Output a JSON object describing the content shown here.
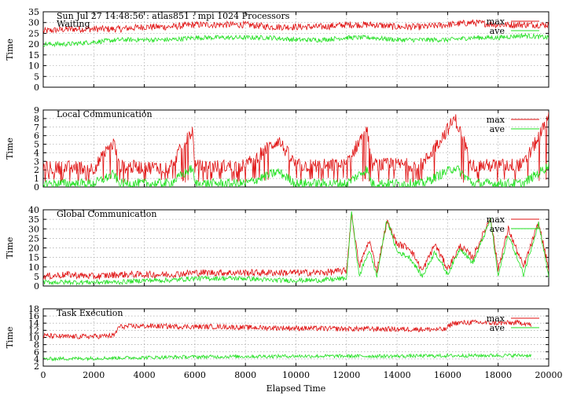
{
  "chart_data": [
    {
      "type": "line",
      "title": "Sun Jul 27 14:48:56 : atlas851 : mpi 1024 Processors",
      "subtitle": "Waiting",
      "ylabel": "Time",
      "xlim": [
        0,
        20000
      ],
      "ylim": [
        0,
        35
      ],
      "yticks": [
        0,
        5,
        10,
        15,
        20,
        25,
        30,
        35
      ],
      "grid": true,
      "legend": "top-right",
      "series": [
        {
          "name": "max",
          "color": "#e01010",
          "x": [
            0,
            1000,
            2000,
            3000,
            4000,
            5000,
            6000,
            7000,
            8000,
            9000,
            10000,
            11000,
            12000,
            13000,
            14000,
            15000,
            16000,
            17000,
            18000,
            19000,
            20000
          ],
          "values": [
            26,
            27,
            27,
            27,
            28,
            28,
            29,
            29,
            29,
            28,
            28,
            28,
            29,
            29,
            28,
            28,
            29,
            30,
            29,
            29,
            29
          ]
        },
        {
          "name": "ave",
          "color": "#20e020",
          "x": [
            0,
            1000,
            2000,
            3000,
            4000,
            5000,
            6000,
            7000,
            8000,
            9000,
            10000,
            11000,
            12000,
            13000,
            14000,
            15000,
            16000,
            17000,
            18000,
            19000,
            20000
          ],
          "values": [
            20,
            20,
            21,
            22,
            22,
            22,
            23,
            23,
            23,
            23,
            22,
            22,
            23,
            23,
            22,
            22,
            22,
            23,
            23,
            24,
            23
          ]
        }
      ]
    },
    {
      "type": "line",
      "title": "Local Communication",
      "ylabel": "Time",
      "xlim": [
        0,
        20000
      ],
      "ylim": [
        0,
        9
      ],
      "yticks": [
        0,
        1,
        2,
        3,
        4,
        5,
        6,
        7,
        8,
        9
      ],
      "grid": true,
      "legend": "top-right",
      "series": [
        {
          "name": "max",
          "color": "#e01010",
          "x": [
            0,
            1000,
            2000,
            2800,
            3000,
            4000,
            5000,
            5900,
            6000,
            7000,
            8000,
            9300,
            10000,
            11000,
            12000,
            12800,
            13000,
            14000,
            15000,
            16300,
            17000,
            18000,
            19000,
            20000
          ],
          "values": [
            2.2,
            2.3,
            2.2,
            5.2,
            2.4,
            2.3,
            2.3,
            6.6,
            2.4,
            2.4,
            2.5,
            5.5,
            2.5,
            2.5,
            2.6,
            7.0,
            2.6,
            2.6,
            2.6,
            8.0,
            2.5,
            2.5,
            2.6,
            8.0
          ]
        },
        {
          "name": "ave",
          "color": "#20e020",
          "x": [
            0,
            1000,
            2000,
            2800,
            3000,
            4000,
            5000,
            5900,
            6000,
            7000,
            8000,
            9300,
            10000,
            11000,
            12000,
            12800,
            13000,
            14000,
            15000,
            16300,
            17000,
            18000,
            19000,
            20000
          ],
          "values": [
            0.4,
            0.4,
            0.4,
            1.5,
            0.4,
            0.4,
            0.4,
            2.2,
            0.4,
            0.4,
            0.4,
            1.8,
            0.4,
            0.4,
            0.4,
            2.1,
            0.4,
            0.4,
            0.4,
            2.3,
            0.4,
            0.4,
            0.4,
            2.5
          ]
        }
      ]
    },
    {
      "type": "line",
      "title": "Global Communication",
      "ylabel": "Time",
      "xlim": [
        0,
        20000
      ],
      "ylim": [
        0,
        40
      ],
      "yticks": [
        0,
        5,
        10,
        15,
        20,
        25,
        30,
        35,
        40
      ],
      "grid": true,
      "legend": "top-right",
      "series": [
        {
          "name": "max",
          "color": "#e01010",
          "x": [
            0,
            1000,
            2000,
            3000,
            4000,
            5000,
            6000,
            7000,
            8000,
            9000,
            10000,
            11000,
            12000,
            12200,
            12500,
            12900,
            13200,
            13600,
            14000,
            14500,
            15000,
            15500,
            16000,
            16500,
            17000,
            17700,
            18000,
            18400,
            19000,
            19600,
            20000
          ],
          "values": [
            5,
            6,
            5,
            6,
            6,
            6,
            7,
            7,
            7,
            7,
            7,
            7,
            8,
            38,
            10,
            24,
            8,
            34,
            22,
            20,
            8,
            22,
            9,
            21,
            15,
            36,
            9,
            30,
            10,
            33,
            9
          ]
        },
        {
          "name": "ave",
          "color": "#20e020",
          "x": [
            0,
            1000,
            2000,
            3000,
            4000,
            5000,
            6000,
            7000,
            8000,
            9000,
            10000,
            11000,
            12000,
            12200,
            12500,
            12900,
            13200,
            13600,
            14000,
            14500,
            15000,
            15500,
            16000,
            16500,
            17000,
            17700,
            18000,
            18400,
            19000,
            19600,
            20000
          ],
          "values": [
            2,
            2,
            2,
            2,
            3,
            3,
            4,
            4,
            4,
            3,
            3,
            3,
            4,
            39,
            5,
            19,
            5,
            35,
            18,
            15,
            5,
            18,
            6,
            20,
            12,
            35,
            5,
            27,
            6,
            33,
            5
          ]
        }
      ]
    },
    {
      "type": "line",
      "title": "Task Execution",
      "ylabel": "Time",
      "xlabel": "Elapsed Time",
      "xlim": [
        0,
        20000
      ],
      "ylim": [
        2,
        18
      ],
      "yticks": [
        2,
        4,
        6,
        8,
        10,
        12,
        14,
        16,
        18
      ],
      "xticks": [
        0,
        2000,
        4000,
        6000,
        8000,
        10000,
        12000,
        14000,
        16000,
        18000,
        20000
      ],
      "grid": true,
      "legend": "top-right",
      "series": [
        {
          "name": "max",
          "color": "#e01010",
          "x": [
            0,
            1000,
            2000,
            2800,
            3000,
            4000,
            5000,
            6000,
            7000,
            8000,
            9000,
            10000,
            11000,
            12000,
            13000,
            14000,
            15000,
            15900,
            16200,
            17000,
            18000,
            19000,
            19300
          ],
          "values": [
            10.5,
            10.2,
            10.3,
            10.5,
            13.0,
            13.2,
            13.1,
            13.0,
            13.0,
            12.8,
            12.7,
            12.6,
            12.5,
            12.4,
            12.4,
            12.3,
            12.3,
            12.2,
            14.0,
            14.2,
            14.0,
            14.1,
            13.5
          ]
        },
        {
          "name": "ave",
          "color": "#20e020",
          "x": [
            0,
            2000,
            4000,
            6000,
            8000,
            10000,
            12000,
            14000,
            16000,
            18000,
            19300
          ],
          "values": [
            4.0,
            4.2,
            4.4,
            4.6,
            4.7,
            4.8,
            4.8,
            4.8,
            4.9,
            5.0,
            5.0
          ]
        }
      ]
    }
  ]
}
